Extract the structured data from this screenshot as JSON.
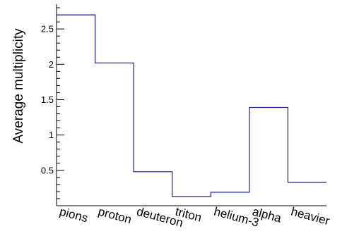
{
  "chart_data": {
    "type": "bar",
    "style": "step-histogram",
    "title": "",
    "xlabel": "",
    "ylabel": "Average multiplicity",
    "categories": [
      "pions",
      "proton",
      "deuteron",
      "triton",
      "helium-3",
      "alpha",
      "heavier"
    ],
    "values": [
      2.7,
      2.02,
      0.48,
      0.13,
      0.19,
      1.39,
      0.33
    ],
    "ylim": [
      0,
      2.85
    ],
    "yticks": [
      0.5,
      1,
      1.5,
      2,
      2.5
    ],
    "ytick_labels": [
      "0.5",
      "1",
      "1.5",
      "2",
      "2.5"
    ],
    "line_color": "#1c1c8c",
    "grid": false,
    "legend": "none"
  }
}
